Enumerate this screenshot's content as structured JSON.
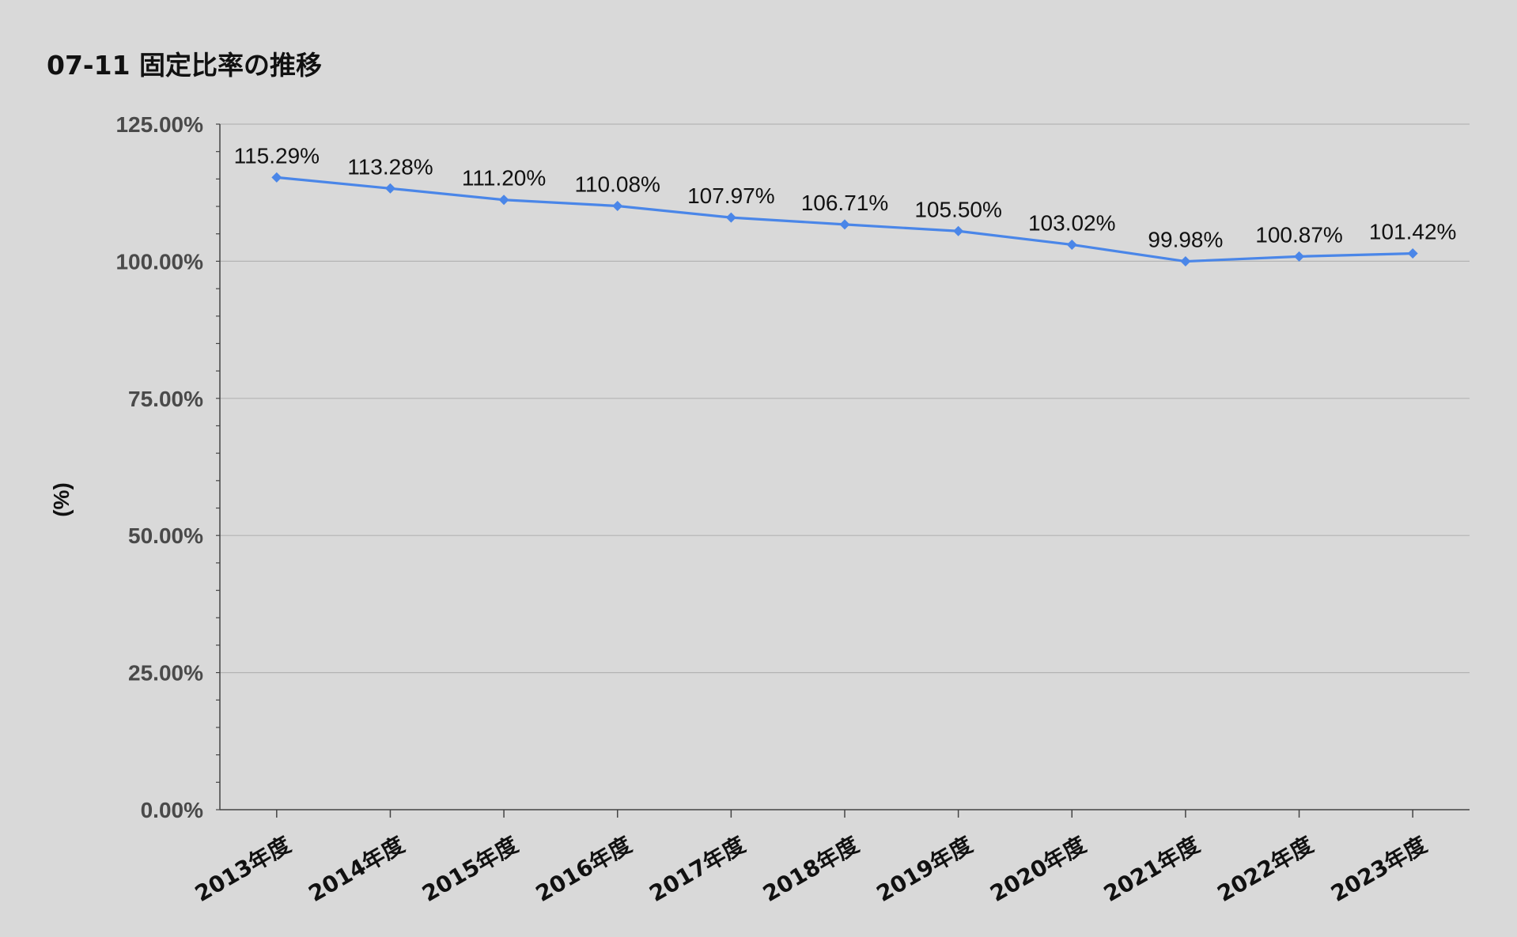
{
  "chart_data": {
    "type": "line",
    "title": "07-11 固定比率の推移",
    "xlabel": "",
    "ylabel": "(%)",
    "categories": [
      "2013年度",
      "2014年度",
      "2015年度",
      "2016年度",
      "2017年度",
      "2018年度",
      "2019年度",
      "2020年度",
      "2021年度",
      "2022年度",
      "2023年度"
    ],
    "series": [
      {
        "values": [
          115.29,
          113.28,
          111.2,
          110.08,
          107.97,
          106.71,
          105.5,
          103.02,
          99.98,
          100.87,
          101.42
        ],
        "labels": [
          "115.29%",
          "113.28%",
          "111.20%",
          "110.08%",
          "107.97%",
          "106.71%",
          "105.50%",
          "103.02%",
          "99.98%",
          "100.87%",
          "101.42%"
        ],
        "color": "#4a86e8",
        "marker": "diamond"
      }
    ],
    "ylim": [
      0,
      125
    ],
    "yticks": [
      0,
      25,
      50,
      75,
      100,
      125
    ],
    "ytick_labels": [
      "0.00%",
      "25.00%",
      "50.00%",
      "75.00%",
      "100.00%",
      "125.00%"
    ],
    "grid": true,
    "legend": "none",
    "colors": {
      "background": "#d9d9d9",
      "grid": "#b4b4b4",
      "axis": "#444444",
      "line": "#4a86e8"
    }
  }
}
